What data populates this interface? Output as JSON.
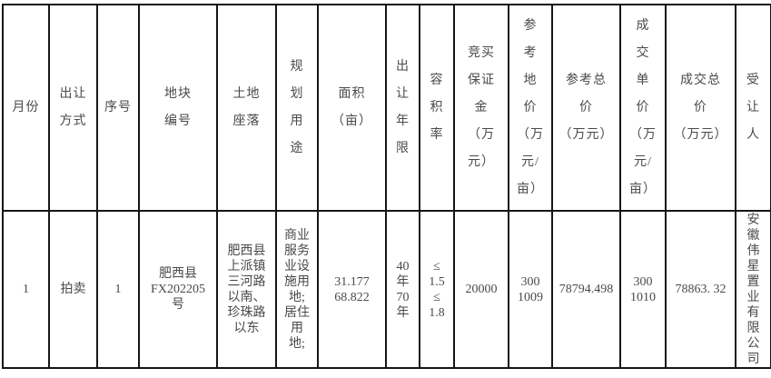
{
  "table": {
    "headers": [
      "月份",
      "出让\n方式",
      "序号",
      "地块\n编号",
      "土地\n座落",
      "规\n划\n用\n途",
      "面积\n（亩）",
      "出\n让\n年\n限",
      "容\n积\n率",
      "竞买\n保证\n金\n（万\n元）",
      "参\n考\n地\n价\n（万\n元/\n亩）",
      "参考总\n价\n（万元）",
      "成\n交\n单\n价\n（万\n元/\n亩）",
      "成交总\n价\n（万元）",
      "受\n让\n人"
    ],
    "row": [
      "1",
      "拍卖",
      "1",
      "肥西县\nFX202205\n号",
      "肥西县\n上派镇\n三河路\n以南、\n珍珠路\n以东",
      "商业\n服务\n业设\n施用\n地;\n居住\n用\n地;",
      "31.177\n68.822",
      "40\n年\n70\n年",
      "≤\n1.5\n≤\n1.8",
      "20000",
      "300\n1009",
      "78794.498",
      "300\n1010",
      "78863. 32",
      "安\n徽\n伟\n星\n置\n业\n有\n限\n公\n司"
    ]
  }
}
